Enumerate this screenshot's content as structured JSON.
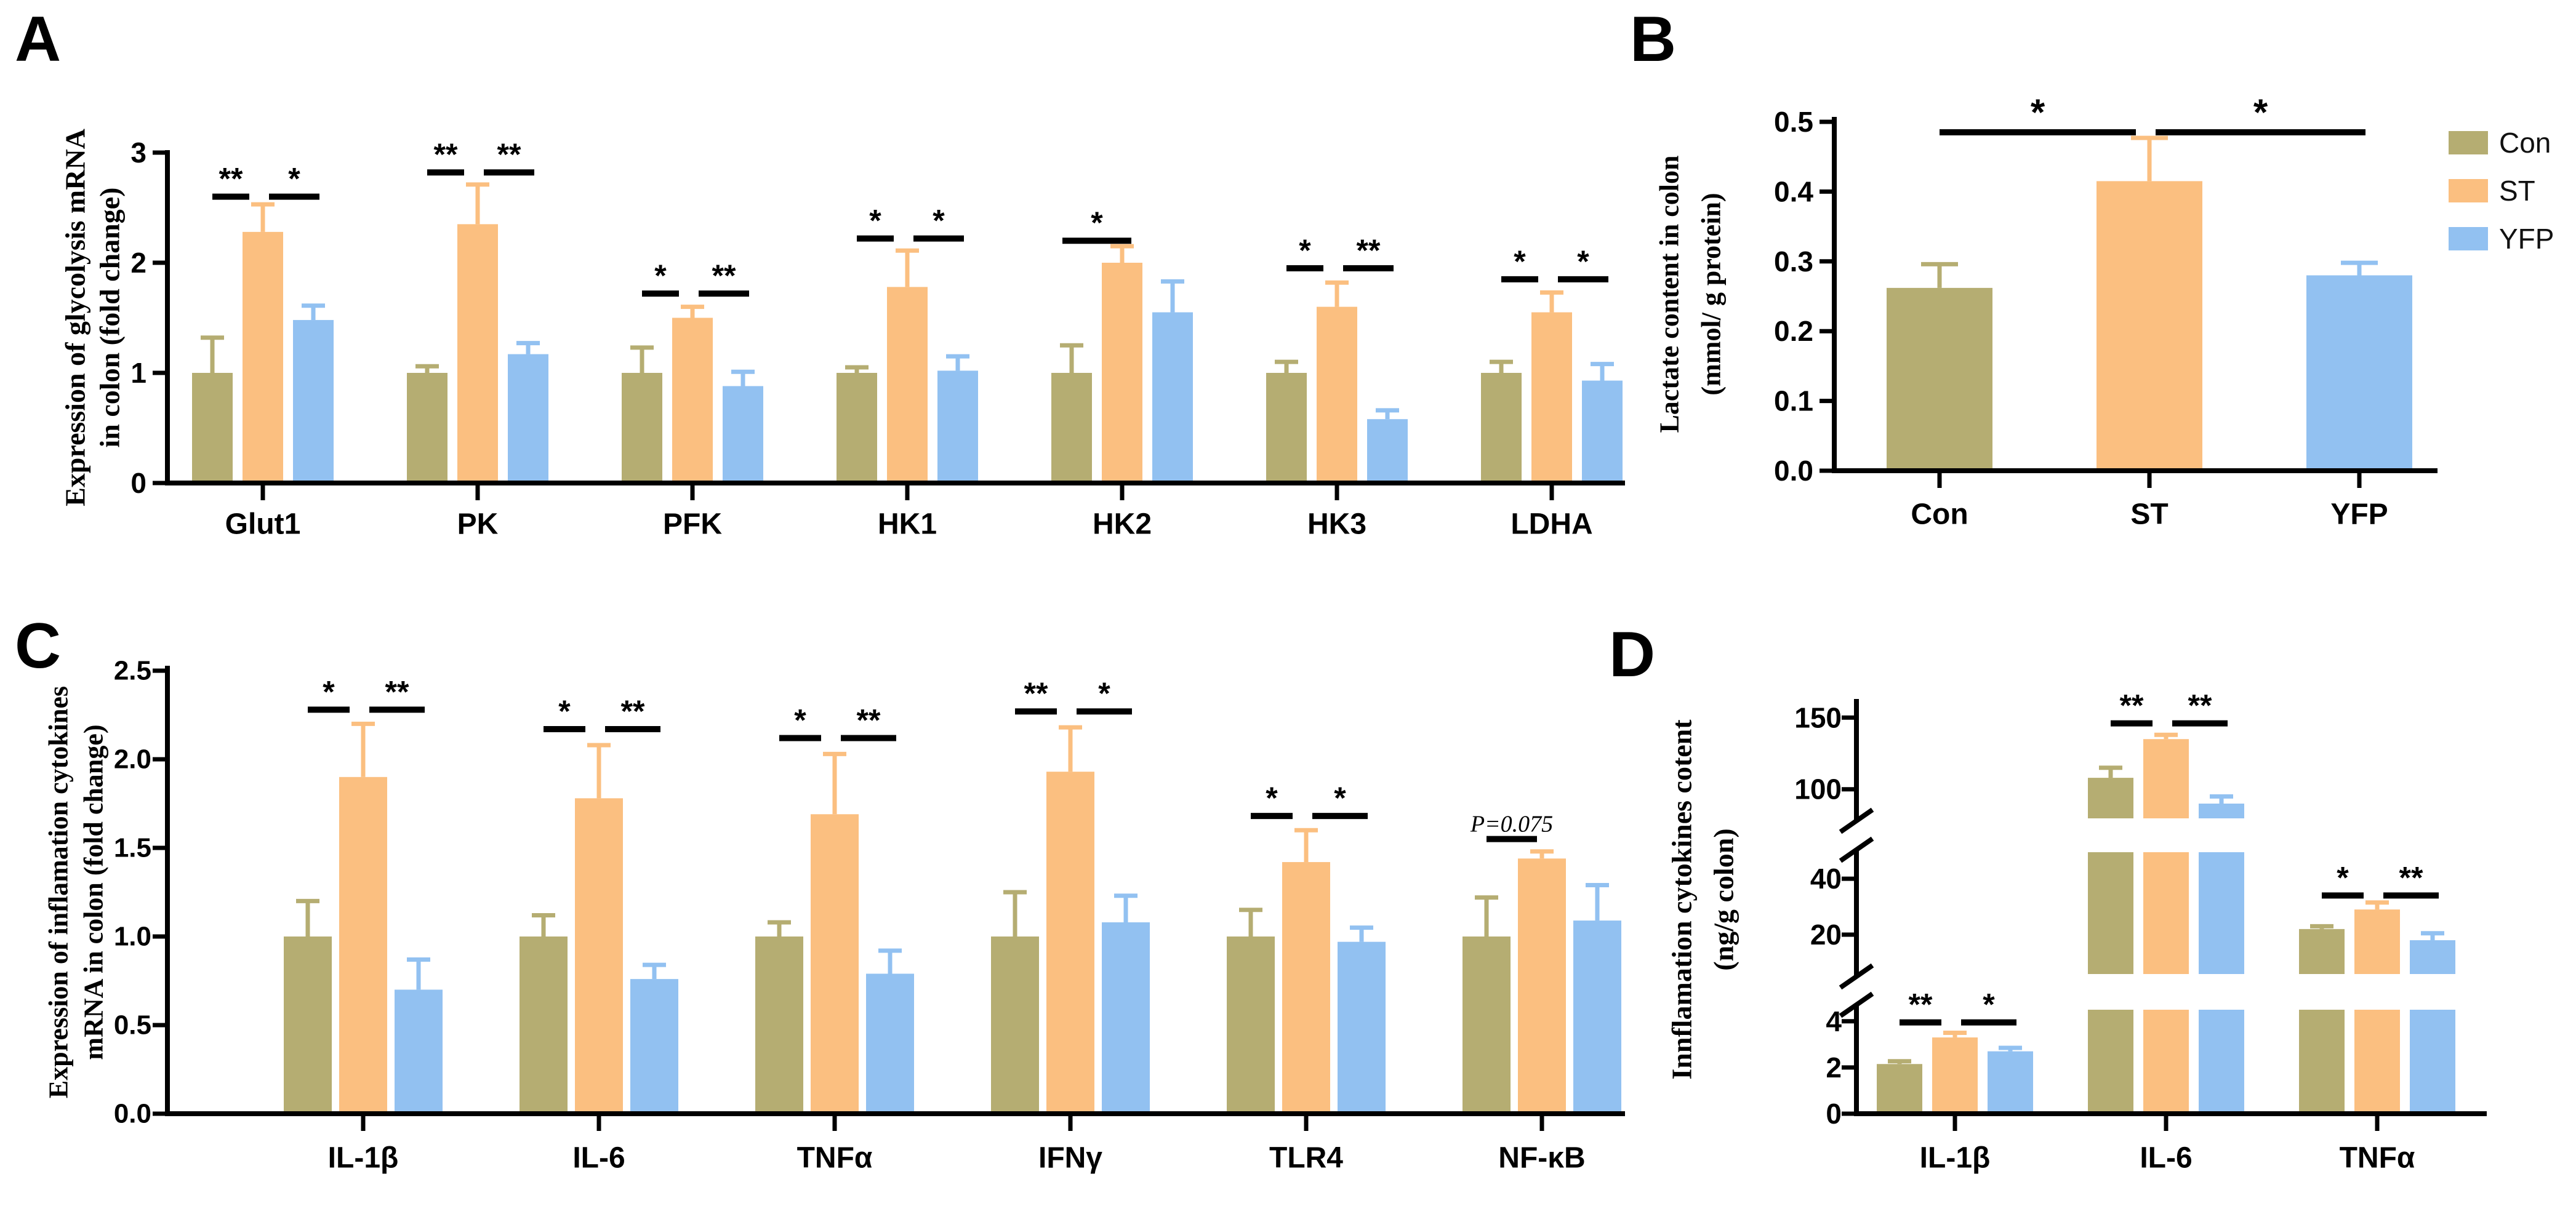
{
  "figure": {
    "background": "#ffffff"
  },
  "panels": {
    "A": {
      "letter": "A"
    },
    "B": {
      "letter": "B"
    },
    "C": {
      "letter": "C"
    },
    "D": {
      "letter": "D"
    }
  },
  "legend": {
    "items": [
      {
        "label": "Con",
        "color": "#b5ad72"
      },
      {
        "label": "ST",
        "color": "#fbbf80"
      },
      {
        "label": "YFP",
        "color": "#92c1f1"
      }
    ]
  },
  "chart_data": [
    {
      "panel": "A",
      "type": "bar",
      "y_title_lines": [
        "Expression of glycolysis mRNA",
        "in colon (fold change)"
      ],
      "categories": [
        "Glut1",
        "PK",
        "PFK",
        "HK1",
        "HK2",
        "HK3",
        "LDHA"
      ],
      "series": [
        {
          "name": "Con",
          "color": "#b5ad72",
          "values": [
            1.0,
            1.0,
            1.0,
            1.0,
            1.0,
            1.0,
            1.0
          ],
          "errors": [
            0.32,
            0.06,
            0.23,
            0.05,
            0.25,
            0.1,
            0.1
          ]
        },
        {
          "name": "ST",
          "color": "#fbbf80",
          "values": [
            2.28,
            2.35,
            1.5,
            1.78,
            2.0,
            1.6,
            1.55
          ],
          "errors": [
            0.25,
            0.36,
            0.1,
            0.33,
            0.15,
            0.22,
            0.18
          ]
        },
        {
          "name": "YFP",
          "color": "#92c1f1",
          "values": [
            1.48,
            1.17,
            0.88,
            1.02,
            1.55,
            0.58,
            0.93
          ],
          "errors": [
            0.13,
            0.1,
            0.13,
            0.13,
            0.28,
            0.08,
            0.15
          ]
        }
      ],
      "axis": {
        "segments": [
          {
            "from": 0,
            "to": 3,
            "ticks": [
              {
                "v": 0,
                "label": "0"
              },
              {
                "v": 1,
                "label": "1"
              },
              {
                "v": 2,
                "label": "2"
              },
              {
                "v": 3,
                "label": "3"
              }
            ]
          }
        ]
      },
      "significance": [
        {
          "category": "Glut1",
          "line_y": 2.6,
          "pairs": [
            {
              "a": "Con",
              "b": "ST",
              "label": "**"
            },
            {
              "a": "ST",
              "b": "YFP",
              "label": "*"
            }
          ]
        },
        {
          "category": "PK",
          "line_y": 2.82,
          "pairs": [
            {
              "a": "Con",
              "b": "ST",
              "label": "**"
            },
            {
              "a": "ST",
              "b": "YFP",
              "label": "**"
            }
          ]
        },
        {
          "category": "PFK",
          "line_y": 1.72,
          "pairs": [
            {
              "a": "Con",
              "b": "ST",
              "label": "*"
            },
            {
              "a": "ST",
              "b": "YFP",
              "label": "**"
            }
          ]
        },
        {
          "category": "HK1",
          "line_y": 2.22,
          "pairs": [
            {
              "a": "Con",
              "b": "ST",
              "label": "*"
            },
            {
              "a": "ST",
              "b": "YFP",
              "label": "*"
            }
          ]
        },
        {
          "category": "HK2",
          "line_y": 2.2,
          "pairs": [
            {
              "a": "Con",
              "b": "ST",
              "label": "*"
            }
          ]
        },
        {
          "category": "HK3",
          "line_y": 1.95,
          "pairs": [
            {
              "a": "Con",
              "b": "ST",
              "label": "*"
            },
            {
              "a": "ST",
              "b": "YFP",
              "label": "**"
            }
          ]
        },
        {
          "category": "LDHA",
          "line_y": 1.85,
          "pairs": [
            {
              "a": "Con",
              "b": "ST",
              "label": "*"
            },
            {
              "a": "ST",
              "b": "YFP",
              "label": "*"
            }
          ]
        }
      ]
    },
    {
      "panel": "B",
      "type": "bar",
      "y_title_lines": [
        "Lactate content in colon",
        "(mmol/ g protein)"
      ],
      "categories": [
        "Con",
        "ST",
        "YFP"
      ],
      "series": [
        {
          "name": "Con",
          "color": "#b5ad72",
          "values": [
            0.262,
            null,
            null
          ],
          "errors": [
            0.034,
            null,
            null
          ]
        },
        {
          "name": "ST",
          "color": "#fbbf80",
          "values": [
            null,
            0.415,
            null
          ],
          "errors": [
            null,
            0.062,
            null
          ]
        },
        {
          "name": "YFP",
          "color": "#92c1f1",
          "values": [
            null,
            null,
            0.28
          ],
          "errors": [
            null,
            null,
            0.018
          ]
        }
      ],
      "single_bar_per_category": true,
      "axis": {
        "segments": [
          {
            "from": 0,
            "to": 0.5,
            "ticks": [
              {
                "v": 0,
                "label": "0.0"
              },
              {
                "v": 0.1,
                "label": "0.1"
              },
              {
                "v": 0.2,
                "label": "0.2"
              },
              {
                "v": 0.3,
                "label": "0.3"
              },
              {
                "v": 0.4,
                "label": "0.4"
              },
              {
                "v": 0.5,
                "label": "0.5"
              }
            ]
          }
        ]
      },
      "significance": [
        {
          "category": "ST",
          "line_y": 0.485,
          "pairs": [
            {
              "a": "Con",
              "b": "ST",
              "label": "*"
            },
            {
              "a": "ST",
              "b": "YFP",
              "label": "*"
            }
          ],
          "cross_category": true
        }
      ]
    },
    {
      "panel": "C",
      "type": "bar",
      "y_title_lines": [
        "Expression of inflamation cytokines",
        "mRNA in colon (fold change)"
      ],
      "categories": [
        "IL-1β",
        "IL-6",
        "TNFα",
        "IFNγ",
        "TLR4",
        "NF-κB"
      ],
      "series": [
        {
          "name": "Con",
          "color": "#b5ad72",
          "values": [
            1.0,
            1.0,
            1.0,
            1.0,
            1.0,
            1.0
          ],
          "errors": [
            0.2,
            0.12,
            0.08,
            0.25,
            0.15,
            0.22
          ]
        },
        {
          "name": "ST",
          "color": "#fbbf80",
          "values": [
            1.9,
            1.78,
            1.69,
            1.93,
            1.42,
            1.44
          ],
          "errors": [
            0.3,
            0.3,
            0.34,
            0.25,
            0.18,
            0.04
          ]
        },
        {
          "name": "YFP",
          "color": "#92c1f1",
          "values": [
            0.7,
            0.76,
            0.79,
            1.08,
            0.97,
            1.09
          ],
          "errors": [
            0.17,
            0.08,
            0.13,
            0.15,
            0.08,
            0.2
          ]
        }
      ],
      "axis": {
        "segments": [
          {
            "from": 0,
            "to": 2.5,
            "ticks": [
              {
                "v": 0,
                "label": "0.0"
              },
              {
                "v": 0.5,
                "label": "0.5"
              },
              {
                "v": 1.0,
                "label": "1.0"
              },
              {
                "v": 1.5,
                "label": "1.5"
              },
              {
                "v": 2.0,
                "label": "2.0"
              },
              {
                "v": 2.5,
                "label": "2.5"
              }
            ]
          }
        ]
      },
      "significance": [
        {
          "category": "IL-1β",
          "line_y": 2.28,
          "pairs": [
            {
              "a": "Con",
              "b": "ST",
              "label": "*"
            },
            {
              "a": "ST",
              "b": "YFP",
              "label": "**"
            }
          ]
        },
        {
          "category": "IL-6",
          "line_y": 2.17,
          "pairs": [
            {
              "a": "Con",
              "b": "ST",
              "label": "*"
            },
            {
              "a": "ST",
              "b": "YFP",
              "label": "**"
            }
          ]
        },
        {
          "category": "TNFα",
          "line_y": 2.12,
          "pairs": [
            {
              "a": "Con",
              "b": "ST",
              "label": "*"
            },
            {
              "a": "ST",
              "b": "YFP",
              "label": "**"
            }
          ]
        },
        {
          "category": "IFNγ",
          "line_y": 2.27,
          "pairs": [
            {
              "a": "Con",
              "b": "ST",
              "label": "**"
            },
            {
              "a": "ST",
              "b": "YFP",
              "label": "*"
            }
          ]
        },
        {
          "category": "TLR4",
          "line_y": 1.68,
          "pairs": [
            {
              "a": "Con",
              "b": "ST",
              "label": "*"
            },
            {
              "a": "ST",
              "b": "YFP",
              "label": "*"
            }
          ]
        },
        {
          "category": "NF-κB",
          "line_y": 1.55,
          "pairs": [
            {
              "a": "Con",
              "b": "ST",
              "label": "P=0.075",
              "style": "pvalue"
            }
          ]
        }
      ]
    },
    {
      "panel": "D",
      "type": "bar",
      "y_title_lines": [
        "Innflamation cytokines cotent",
        "(ng/g colon)"
      ],
      "categories": [
        "IL-1β",
        "IL-6",
        "TNFα"
      ],
      "series": [
        {
          "name": "Con",
          "color": "#b5ad72",
          "values": [
            2.15,
            108,
            22
          ],
          "errors": [
            0.12,
            7,
            1
          ]
        },
        {
          "name": "ST",
          "color": "#fbbf80",
          "values": [
            3.3,
            135,
            29
          ],
          "errors": [
            0.2,
            3,
            2.5
          ]
        },
        {
          "name": "YFP",
          "color": "#92c1f1",
          "values": [
            2.7,
            90,
            18
          ],
          "errors": [
            0.15,
            5,
            2.5
          ]
        }
      ],
      "axis": {
        "broken": true,
        "segments": [
          {
            "from": 0,
            "to": 4.5,
            "ticks": [
              {
                "v": 0,
                "label": "0"
              },
              {
                "v": 2,
                "label": "2"
              },
              {
                "v": 4,
                "label": "4"
              }
            ]
          },
          {
            "from": 5.9,
            "to": 49.5,
            "ticks": [
              {
                "v": 20,
                "label": "20"
              },
              {
                "v": 40,
                "label": "40"
              }
            ]
          },
          {
            "from": 79.7,
            "to": 163,
            "ticks": [
              {
                "v": 100,
                "label": "100"
              },
              {
                "v": 150,
                "label": "150"
              }
            ]
          }
        ]
      },
      "significance": [
        {
          "category": "IL-1β",
          "line_y": 3.95,
          "pairs": [
            {
              "a": "Con",
              "b": "ST",
              "label": "**"
            },
            {
              "a": "ST",
              "b": "YFP",
              "label": "*"
            }
          ]
        },
        {
          "category": "IL-6",
          "line_y": 146,
          "pairs": [
            {
              "a": "Con",
              "b": "ST",
              "label": "**"
            },
            {
              "a": "ST",
              "b": "YFP",
              "label": "**"
            }
          ]
        },
        {
          "category": "TNFα",
          "line_y": 34,
          "pairs": [
            {
              "a": "Con",
              "b": "ST",
              "label": "*"
            },
            {
              "a": "ST",
              "b": "YFP",
              "label": "**"
            }
          ]
        }
      ]
    }
  ]
}
